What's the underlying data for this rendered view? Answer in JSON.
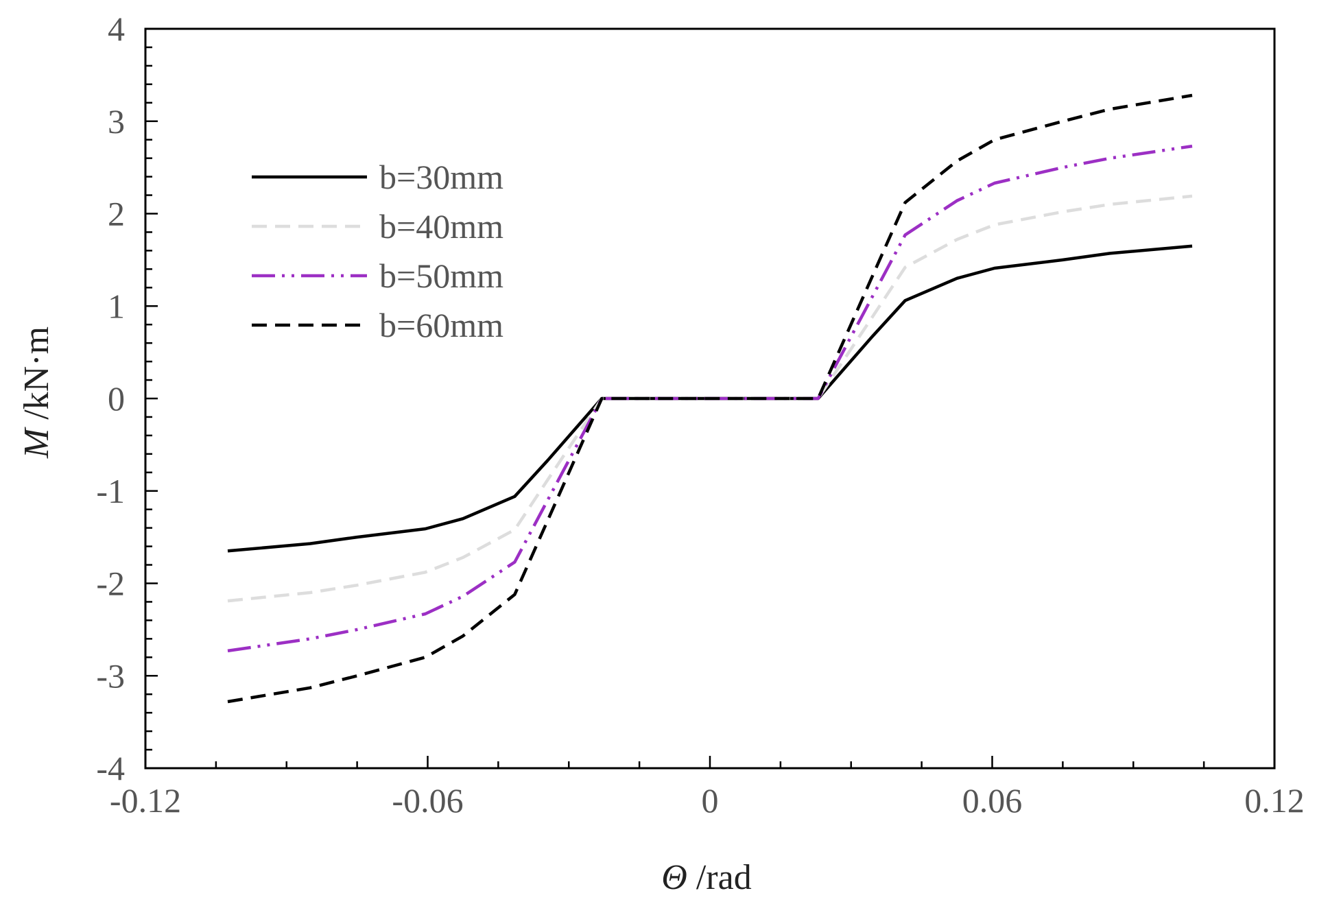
{
  "chart_data": {
    "type": "line",
    "title": "",
    "xlabel": {
      "symbol": "Θ",
      "unit": " /rad"
    },
    "ylabel": {
      "symbol": "M",
      "unit": " /kN·m"
    },
    "xlim": [
      -0.12,
      0.12
    ],
    "ylim": [
      -4,
      4
    ],
    "x_ticks": [
      -0.12,
      -0.06,
      0,
      0.06,
      0.12
    ],
    "x_tick_labels": [
      "-0.12",
      "-0.06",
      "0",
      "0.06",
      "0.12"
    ],
    "y_ticks": [
      -4,
      -3,
      -2,
      -1,
      0,
      1,
      2,
      3,
      4
    ],
    "y_tick_labels": [
      "-4",
      "-3",
      "-2",
      "-1",
      "0",
      "1",
      "2",
      "3",
      "4"
    ],
    "grid": false,
    "legend_position": "top-left",
    "series": [
      {
        "name": "b=30mm",
        "color": "#000000",
        "dash": "solid",
        "x": [
          -0.1025,
          -0.085,
          -0.075,
          -0.0605,
          -0.0525,
          -0.0415,
          -0.0345,
          -0.023,
          0,
          0.023,
          0.0345,
          0.0415,
          0.0525,
          0.0605,
          0.075,
          0.085,
          0.1025
        ],
        "y": [
          -1.65,
          -1.57,
          -1.5,
          -1.41,
          -1.3,
          -1.06,
          -0.67,
          0,
          0,
          0,
          0.67,
          1.06,
          1.3,
          1.41,
          1.5,
          1.57,
          1.65
        ]
      },
      {
        "name": "b=40mm",
        "color": "#dddddd",
        "dash": "dashed",
        "x": [
          -0.1025,
          -0.085,
          -0.075,
          -0.0605,
          -0.0525,
          -0.0415,
          -0.0345,
          -0.023,
          0,
          0.023,
          0.0345,
          0.0415,
          0.0525,
          0.0605,
          0.075,
          0.085,
          0.1025
        ],
        "y": [
          -2.19,
          -2.1,
          -2.02,
          -1.88,
          -1.72,
          -1.42,
          -0.88,
          0,
          0,
          0,
          0.88,
          1.42,
          1.72,
          1.88,
          2.02,
          2.1,
          2.19
        ]
      },
      {
        "name": "b=50mm",
        "color": "#9c2fc4",
        "dash": "dashdotdot",
        "x": [
          -0.1025,
          -0.085,
          -0.075,
          -0.0605,
          -0.0525,
          -0.0415,
          -0.0345,
          -0.023,
          0,
          0.023,
          0.0345,
          0.0415,
          0.0525,
          0.0605,
          0.075,
          0.085,
          0.1025
        ],
        "y": [
          -2.73,
          -2.6,
          -2.5,
          -2.33,
          -2.14,
          -1.77,
          -1.1,
          0,
          0,
          0,
          1.1,
          1.77,
          2.14,
          2.33,
          2.5,
          2.6,
          2.73
        ]
      },
      {
        "name": "b=60mm",
        "color": "#000000",
        "dash": "dashed",
        "x": [
          -0.1025,
          -0.085,
          -0.075,
          -0.0605,
          -0.0525,
          -0.0415,
          -0.0345,
          -0.023,
          0,
          0.023,
          0.0345,
          0.0415,
          0.0525,
          0.0605,
          0.075,
          0.085,
          0.1025
        ],
        "y": [
          -3.28,
          -3.13,
          -3.0,
          -2.8,
          -2.57,
          -2.12,
          -1.32,
          0,
          0,
          0,
          1.32,
          2.12,
          2.57,
          2.8,
          3.0,
          3.13,
          3.28
        ]
      }
    ]
  }
}
